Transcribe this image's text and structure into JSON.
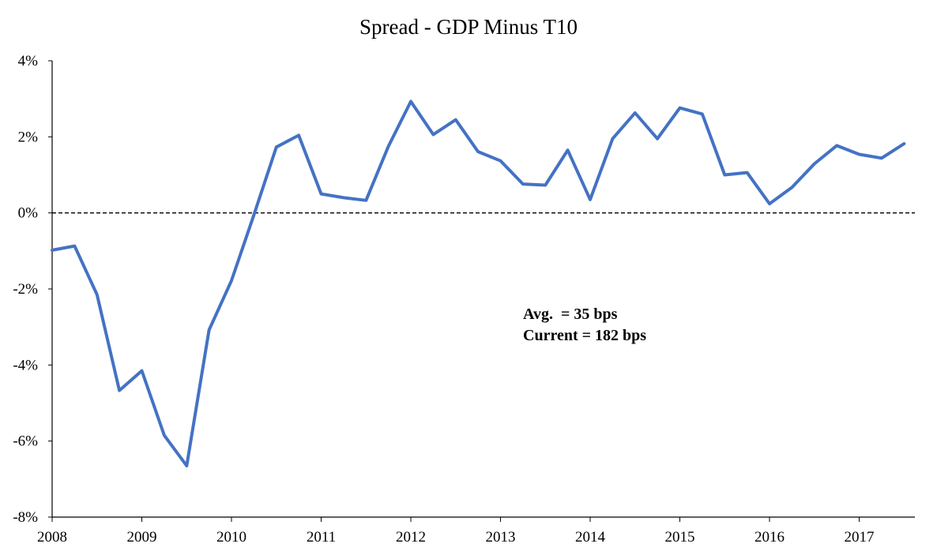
{
  "chart_data": {
    "type": "line",
    "title": "Spread - GDP Minus T10",
    "xlabel": "",
    "ylabel": "",
    "xlim": [
      2008,
      2017.6
    ],
    "ylim": [
      -8,
      4
    ],
    "x_ticks": [
      2008,
      2009,
      2010,
      2011,
      2012,
      2013,
      2014,
      2015,
      2016,
      2017
    ],
    "x_tick_labels": [
      "2008",
      "2009",
      "2010",
      "2011",
      "2012",
      "2013",
      "2014",
      "2015",
      "2016",
      "2017"
    ],
    "y_ticks": [
      -8,
      -6,
      -4,
      -2,
      0,
      2,
      4
    ],
    "y_tick_labels": [
      "-8%",
      "-6%",
      "-4%",
      "-2%",
      "0%",
      "2%",
      "4%"
    ],
    "grid": false,
    "legend": "none",
    "reference_line": {
      "y": 0,
      "style": "dashed",
      "color": "#000000"
    },
    "series_color": "#4472C4",
    "series": [
      {
        "x": [
          2008.0,
          2008.25,
          2008.5,
          2008.75,
          2009.0,
          2009.25,
          2009.5,
          2009.75,
          2010.0,
          2010.25,
          2010.5,
          2010.75,
          2011.0,
          2011.25,
          2011.5,
          2011.75,
          2012.0,
          2012.25,
          2012.5,
          2012.75,
          2013.0,
          2013.25,
          2013.5,
          2013.75,
          2014.0,
          2014.25,
          2014.5,
          2014.75,
          2015.0,
          2015.25,
          2015.5,
          2015.75,
          2016.0,
          2016.25,
          2016.5,
          2016.75,
          2017.0,
          2017.25,
          2017.5
        ],
        "values": [
          -0.98,
          -0.87,
          -2.15,
          -4.67,
          -4.15,
          -5.85,
          -6.65,
          -3.08,
          -1.78,
          -0.05,
          1.73,
          2.04,
          0.5,
          0.4,
          0.33,
          1.75,
          2.93,
          2.06,
          2.45,
          1.61,
          1.37,
          0.76,
          0.73,
          1.65,
          0.35,
          1.95,
          2.63,
          1.95,
          2.76,
          2.6,
          1.0,
          1.06,
          0.24,
          0.67,
          1.29,
          1.77,
          1.54,
          1.44,
          1.82
        ]
      }
    ],
    "annotations": [
      "Avg.  = 35 bps",
      "Current = 182 bps"
    ]
  }
}
